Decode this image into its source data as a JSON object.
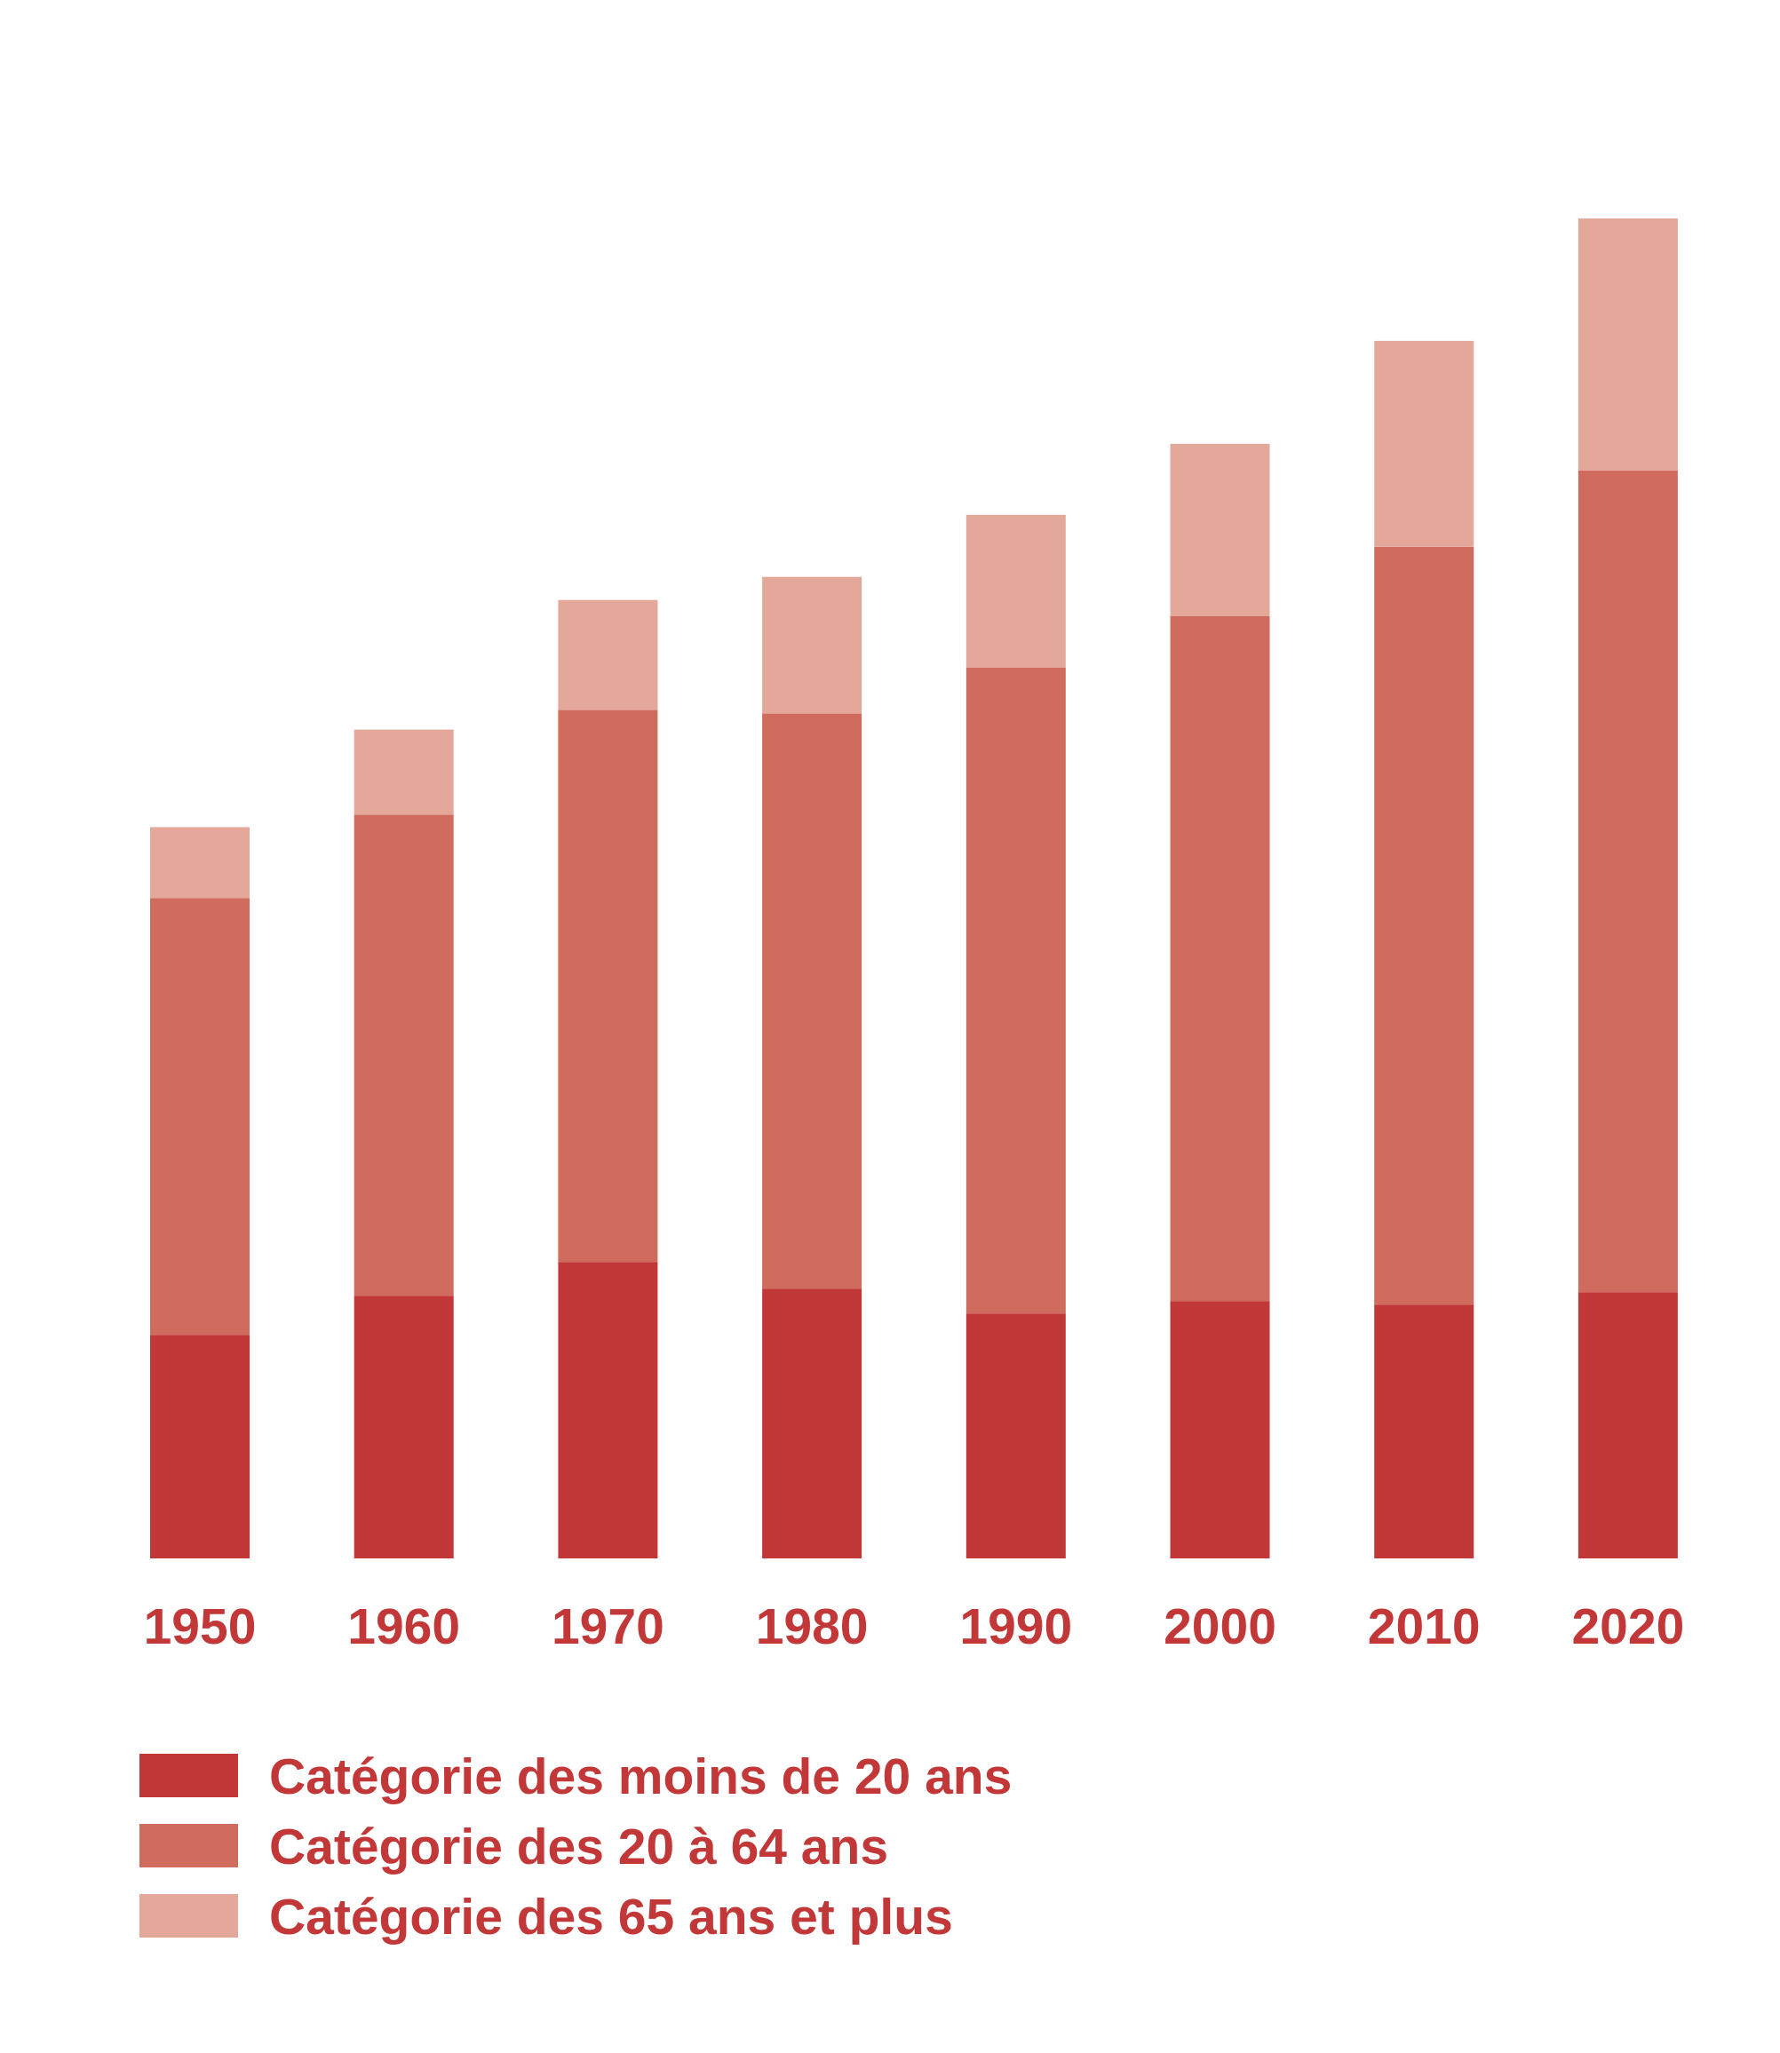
{
  "chart_data": {
    "type": "bar",
    "stacked": true,
    "categories": [
      "1950",
      "1960",
      "1970",
      "1980",
      "1990",
      "2000",
      "2010",
      "2020"
    ],
    "series": [
      {
        "name": "Catégorie des moins de 20 ans",
        "color": "#c23838",
        "values": [
          1.26,
          1.48,
          1.67,
          1.52,
          1.38,
          1.45,
          1.43,
          1.5
        ]
      },
      {
        "name": "Catégorie des 20 à 64 ans",
        "color": "#cf6c5d",
        "values": [
          2.46,
          2.71,
          3.11,
          3.24,
          3.64,
          3.86,
          4.27,
          4.63
        ]
      },
      {
        "name": "Catégorie des 65 ans et plus",
        "color": "#e4a89b",
        "values": [
          0.4,
          0.48,
          0.62,
          0.77,
          0.86,
          0.97,
          1.16,
          1.42
        ]
      }
    ],
    "ylim": [
      0,
      7.56
    ],
    "grid": false,
    "show_y_axis": false,
    "legend_position": "bottom-left",
    "label_color": "#c23838"
  }
}
